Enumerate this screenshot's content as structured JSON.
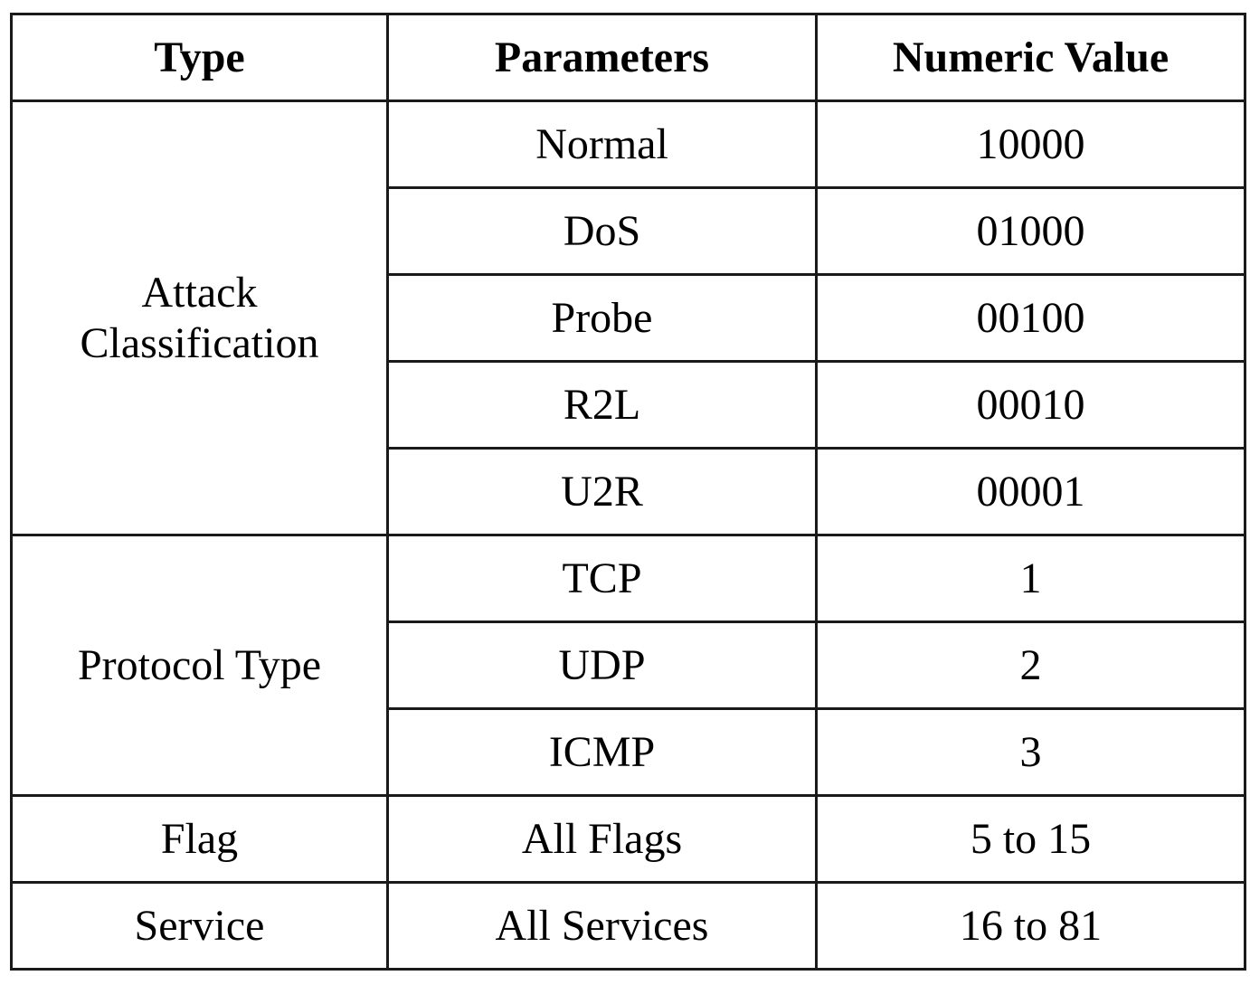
{
  "table": {
    "headers": [
      "Type",
      "Parameters",
      "Numeric Value"
    ],
    "groups": [
      {
        "type_lines": [
          "Attack",
          "Classification"
        ],
        "rows": [
          {
            "parameter": "Normal",
            "value": "10000"
          },
          {
            "parameter": "DoS",
            "value": "01000"
          },
          {
            "parameter": "Probe",
            "value": "00100"
          },
          {
            "parameter": "R2L",
            "value": "00010"
          },
          {
            "parameter": "U2R",
            "value": "00001"
          }
        ]
      },
      {
        "type_lines": [
          "Protocol Type"
        ],
        "rows": [
          {
            "parameter": "TCP",
            "value": "1"
          },
          {
            "parameter": "UDP",
            "value": "2"
          },
          {
            "parameter": "ICMP",
            "value": "3"
          }
        ]
      },
      {
        "type_lines": [
          "Flag"
        ],
        "rows": [
          {
            "parameter": "All Flags",
            "value": "5 to 15"
          }
        ]
      },
      {
        "type_lines": [
          "Service"
        ],
        "rows": [
          {
            "parameter": "All Services",
            "value": "16 to 81"
          }
        ]
      }
    ]
  }
}
